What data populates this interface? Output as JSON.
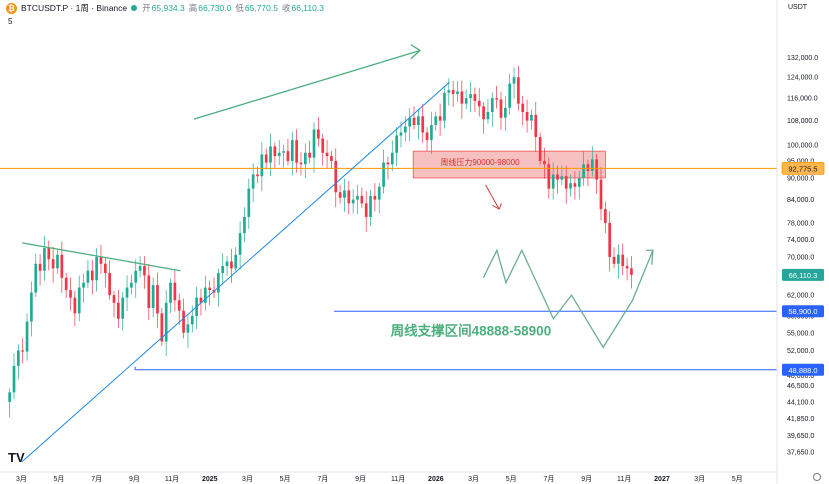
{
  "header": {
    "logo_glyph": "₿",
    "symbol": "BTCUSDT.P · 1周 · Binance",
    "open_label": "开",
    "open_value": "65,934.3",
    "high_label": "高",
    "high_value": "66,730.0",
    "low_label": "低",
    "low_value": "65,770.5",
    "close_label": "收",
    "close_value": "66,110.3",
    "sub_value": "5",
    "up_color": "#22ab94"
  },
  "axis": {
    "currency": "USDT"
  },
  "chart_data": {
    "type": "candlestick",
    "interval": "1W",
    "y_scale": "log",
    "ylim": [
      36000,
      145000
    ],
    "y_ticks": [
      "132,000.0",
      "124,000.0",
      "116,000.0",
      "108,000.0",
      "100,000.0",
      "95,000.0",
      "90,000.0",
      "84,000.0",
      "78,000.0",
      "74,000.0",
      "70,000.0",
      "66,000.0",
      "62,000.0",
      "58,000.0",
      "55,000.0",
      "52,000.0",
      "48,000.0",
      "46,500.0",
      "44,100.0",
      "41,850.0",
      "39,650.0",
      "37,650.0"
    ],
    "x_ticks": [
      "3月",
      "5月",
      "7月",
      "9月",
      "11月",
      "2025",
      "3月",
      "5月",
      "7月",
      "9月",
      "11月",
      "2026",
      "3月",
      "5月",
      "7月",
      "9月",
      "11月",
      "2027",
      "3月",
      "5月"
    ],
    "x_tick_years": [
      2024.167,
      2024.333,
      2024.5,
      2024.667,
      2024.833,
      2025.0,
      2025.167,
      2025.333,
      2025.5,
      2025.667,
      2025.833,
      2026.0,
      2026.167,
      2026.333,
      2026.5,
      2026.667,
      2026.833,
      2027.0,
      2027.167,
      2027.333
    ],
    "xlim": [
      2024.09,
      2027.5
    ],
    "up_color": "#22ab94",
    "down_color": "#f23645",
    "closes": [
      45500,
      49500,
      52000,
      51800,
      57000,
      62500,
      68500,
      67000,
      72000,
      69500,
      67500,
      70500,
      65500,
      63000,
      61500,
      58500,
      63500,
      64500,
      67000,
      65000,
      70000,
      68500,
      66500,
      62000,
      60500,
      57500,
      61500,
      63500,
      64500,
      67000,
      68000,
      66000,
      59500,
      64000,
      58500,
      53500,
      60500,
      64500,
      61000,
      59000,
      55000,
      56500,
      58000,
      61500,
      60500,
      63500,
      63000,
      62500,
      66500,
      68000,
      69000,
      67500,
      70500,
      75500,
      79500,
      87000,
      91000,
      90500,
      97000,
      94500,
      99500,
      96500,
      97500,
      98000,
      95000,
      101500,
      94500,
      94000,
      97500,
      96000,
      105000,
      102000,
      97500,
      96500,
      95000,
      86000,
      84500,
      86500,
      83000,
      84000,
      85000,
      83000,
      79500,
      85000,
      84000,
      87500,
      94500,
      94000,
      97500,
      103000,
      104000,
      106000,
      109000,
      106500,
      109500,
      104000,
      101500,
      106500,
      109500,
      108000,
      118000,
      119000,
      117500,
      118500,
      114000,
      116000,
      117500,
      115000,
      113000,
      108500,
      111000,
      116000,
      115500,
      109000,
      112500,
      121500,
      124000,
      114000,
      111000,
      108000,
      110000,
      102500,
      95000,
      94000,
      87000,
      91000,
      89500,
      90500,
      87000,
      88500,
      87500,
      90000,
      94000,
      92000,
      95500,
      89500,
      81500,
      78000,
      70000,
      68500,
      70500,
      68000,
      67500,
      66110
    ],
    "support_zone": [
      48888,
      58900
    ],
    "resistance_zone": [
      90000,
      98000
    ],
    "current_price": 66110.3,
    "last_price_line": 92775.5,
    "price_labels": {
      "last": "92,775.5",
      "current": "66,110.3",
      "support_top": "58,900.0",
      "support_bottom": "48,888.0"
    },
    "annotations": {
      "resistance": "周线压力90000-98000",
      "support": "周线支撑区间48888-58900"
    },
    "projection_path": [
      [
        2026.21,
        65500
      ],
      [
        2026.27,
        71500
      ],
      [
        2026.31,
        64500
      ],
      [
        2026.38,
        71500
      ],
      [
        2026.52,
        57500
      ],
      [
        2026.6,
        62000
      ],
      [
        2026.74,
        52500
      ],
      [
        2026.87,
        61000
      ],
      [
        2026.96,
        71500
      ]
    ],
    "drawing_colors": {
      "channel": "#1e88e5",
      "trend": "#4caf7d",
      "projection": "#6cae8f",
      "level": "#ff9800",
      "zone": "#ef5350"
    }
  }
}
